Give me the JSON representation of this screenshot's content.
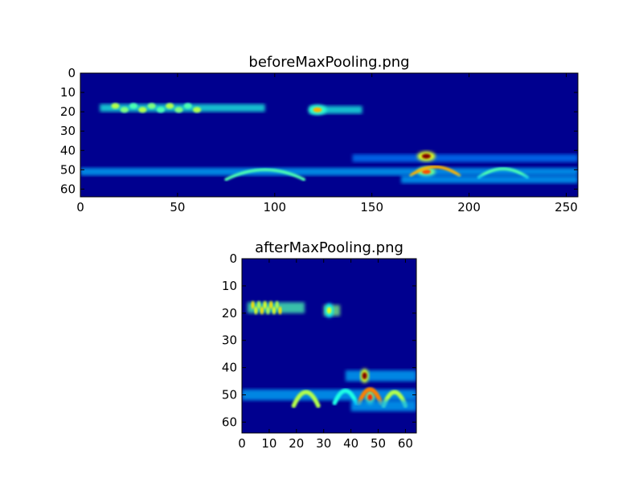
{
  "chart_data": [
    {
      "type": "heatmap",
      "title": "beforeMaxPooling.png",
      "colormap": "jet",
      "xlim": [
        0,
        256
      ],
      "ylim": [
        64,
        0
      ],
      "xticks": [
        0,
        50,
        100,
        150,
        200,
        250
      ],
      "yticks": [
        0,
        10,
        20,
        30,
        40,
        50,
        60
      ],
      "background_color": "#00008f",
      "features": [
        {
          "kind": "band",
          "x": [
            10,
            95
          ],
          "y": 18,
          "intensity": 0.4
        },
        {
          "kind": "spots",
          "x": [
            18,
            60
          ],
          "y": 18,
          "intensity": 0.55
        },
        {
          "kind": "band",
          "x": [
            118,
            145
          ],
          "y": 19,
          "intensity": 0.4
        },
        {
          "kind": "spot",
          "x": 122,
          "y": 19,
          "intensity": 0.7
        },
        {
          "kind": "band",
          "x": [
            0,
            256
          ],
          "y": 51,
          "intensity": 0.3
        },
        {
          "kind": "curve",
          "x": [
            75,
            115
          ],
          "y": [
            48,
            55
          ],
          "intensity": 0.45
        },
        {
          "kind": "band",
          "x": [
            140,
            256
          ],
          "y": 44,
          "intensity": 0.25
        },
        {
          "kind": "spot",
          "x": 178,
          "y": 43,
          "intensity": 1.0
        },
        {
          "kind": "spot",
          "x": 178,
          "y": 51,
          "intensity": 0.8
        },
        {
          "kind": "curve",
          "x": [
            170,
            195
          ],
          "y": [
            47,
            53
          ],
          "intensity": 0.7
        },
        {
          "kind": "curve",
          "x": [
            205,
            230
          ],
          "y": [
            48,
            54
          ],
          "intensity": 0.45
        },
        {
          "kind": "band",
          "x": [
            165,
            256
          ],
          "y": 55,
          "intensity": 0.3
        }
      ]
    },
    {
      "type": "heatmap",
      "title": "afterMaxPooling.png",
      "colormap": "jet",
      "xlim": [
        0,
        64
      ],
      "ylim": [
        64,
        0
      ],
      "xticks": [
        0,
        10,
        20,
        30,
        40,
        50,
        60
      ],
      "yticks": [
        0,
        10,
        20,
        30,
        40,
        50,
        60
      ],
      "background_color": "#00008f",
      "features": [
        {
          "kind": "band",
          "x": [
            2,
            23
          ],
          "y": 18,
          "intensity": 0.45
        },
        {
          "kind": "spots",
          "x": [
            4,
            14
          ],
          "y": 18,
          "intensity": 0.65
        },
        {
          "kind": "band",
          "x": [
            30,
            36
          ],
          "y": 19,
          "intensity": 0.5
        },
        {
          "kind": "spot",
          "x": 32,
          "y": 19,
          "intensity": 0.6
        },
        {
          "kind": "band",
          "x": [
            0,
            64
          ],
          "y": 50,
          "intensity": 0.3
        },
        {
          "kind": "curve",
          "x": [
            19,
            28
          ],
          "y": [
            47,
            54
          ],
          "intensity": 0.55
        },
        {
          "kind": "curve",
          "x": [
            34,
            42
          ],
          "y": [
            47,
            53
          ],
          "intensity": 0.4
        },
        {
          "kind": "band",
          "x": [
            38,
            64
          ],
          "y": 43,
          "intensity": 0.3
        },
        {
          "kind": "spot",
          "x": 45,
          "y": 43,
          "intensity": 1.0
        },
        {
          "kind": "spot",
          "x": 47,
          "y": 51,
          "intensity": 0.85
        },
        {
          "kind": "curve",
          "x": [
            43,
            51
          ],
          "y": [
            46,
            53
          ],
          "intensity": 0.75
        },
        {
          "kind": "curve",
          "x": [
            52,
            60
          ],
          "y": [
            47,
            54
          ],
          "intensity": 0.55
        },
        {
          "kind": "band",
          "x": [
            40,
            64
          ],
          "y": 54,
          "intensity": 0.3
        }
      ]
    }
  ]
}
